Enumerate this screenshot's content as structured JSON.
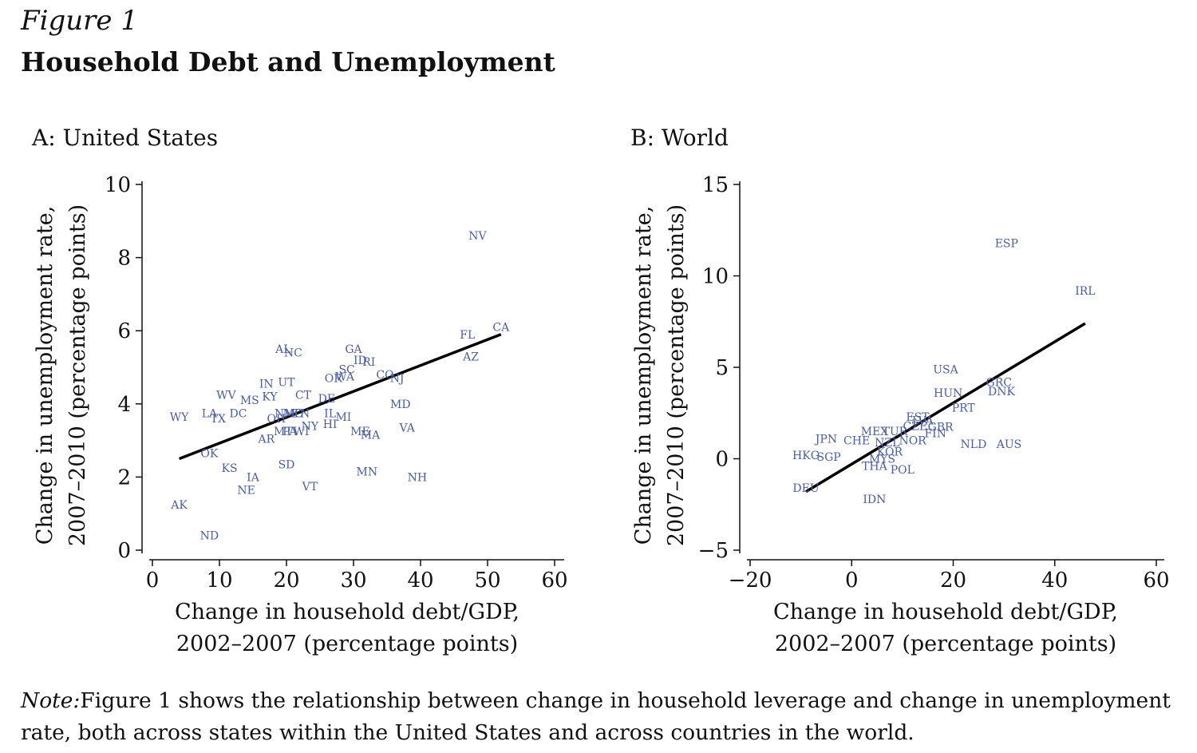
{
  "figure": {
    "label": "Figure 1",
    "title": "Household Debt and Unemployment",
    "note_label": "Note:",
    "note_text": "Figure 1 shows the relationship between change in household leverage and change in unemployment rate, both across states within the United States and across countries in the world."
  },
  "chart_data": [
    {
      "type": "scatter",
      "title": "A: United States",
      "xlabel": [
        "Change in household debt/GDP,",
        "2002–2007 (percentage points)"
      ],
      "ylabel": [
        "Change in unemployment rate,",
        "2007–2010 (percentage points)"
      ],
      "xlim": [
        0,
        60
      ],
      "ylim": [
        0,
        10
      ],
      "xticks": [
        0,
        10,
        20,
        30,
        40,
        50,
        60
      ],
      "yticks": [
        0,
        2,
        4,
        6,
        8,
        10
      ],
      "xtick_labels": [
        "0",
        "10",
        "20",
        "30",
        "40",
        "50",
        "60"
      ],
      "ytick_labels": [
        "0",
        "2",
        "4",
        "6",
        "8",
        "10"
      ],
      "point_color": "#4b5ea4",
      "fit_line": {
        "x": [
          4,
          52
        ],
        "y": [
          2.5,
          5.9
        ]
      },
      "points": [
        {
          "label": "NV",
          "x": 48.5,
          "y": 8.6
        },
        {
          "label": "CA",
          "x": 52,
          "y": 6.1
        },
        {
          "label": "FL",
          "x": 47,
          "y": 5.9
        },
        {
          "label": "AZ",
          "x": 47.5,
          "y": 5.3
        },
        {
          "label": "AL",
          "x": 19.5,
          "y": 5.5
        },
        {
          "label": "NC",
          "x": 21,
          "y": 5.4
        },
        {
          "label": "GA",
          "x": 30,
          "y": 5.5
        },
        {
          "label": "ID",
          "x": 31,
          "y": 5.2
        },
        {
          "label": "RI",
          "x": 32.3,
          "y": 5.15
        },
        {
          "label": "SC",
          "x": 29,
          "y": 4.95
        },
        {
          "label": "OR",
          "x": 27,
          "y": 4.7
        },
        {
          "label": "WA",
          "x": 28.7,
          "y": 4.75
        },
        {
          "label": "CO",
          "x": 34.7,
          "y": 4.8
        },
        {
          "label": "NJ",
          "x": 36.5,
          "y": 4.7
        },
        {
          "label": "IN",
          "x": 17,
          "y": 4.55
        },
        {
          "label": "UT",
          "x": 20,
          "y": 4.6
        },
        {
          "label": "WV",
          "x": 11,
          "y": 4.25
        },
        {
          "label": "MS",
          "x": 14.5,
          "y": 4.1
        },
        {
          "label": "KY",
          "x": 17.5,
          "y": 4.2
        },
        {
          "label": "CT",
          "x": 22.5,
          "y": 4.25
        },
        {
          "label": "DE",
          "x": 26,
          "y": 4.15
        },
        {
          "label": "MD",
          "x": 37,
          "y": 4.0
        },
        {
          "label": "WY",
          "x": 4,
          "y": 3.65
        },
        {
          "label": "LA",
          "x": 8.5,
          "y": 3.75
        },
        {
          "label": "TX",
          "x": 9.8,
          "y": 3.6
        },
        {
          "label": "DC",
          "x": 12.8,
          "y": 3.75
        },
        {
          "label": "OH",
          "x": 18.5,
          "y": 3.6
        },
        {
          "label": "NM",
          "x": 19.8,
          "y": 3.75
        },
        {
          "label": "MO",
          "x": 21,
          "y": 3.75
        },
        {
          "label": "TN",
          "x": 22.2,
          "y": 3.75
        },
        {
          "label": "IL",
          "x": 26.5,
          "y": 3.75
        },
        {
          "label": "MI",
          "x": 28.5,
          "y": 3.65
        },
        {
          "label": "NY",
          "x": 23.5,
          "y": 3.4
        },
        {
          "label": "HI",
          "x": 26.5,
          "y": 3.45
        },
        {
          "label": "MT",
          "x": 19.5,
          "y": 3.25
        },
        {
          "label": "PA",
          "x": 20.5,
          "y": 3.25
        },
        {
          "label": "WI",
          "x": 22.2,
          "y": 3.25
        },
        {
          "label": "AR",
          "x": 17,
          "y": 3.05
        },
        {
          "label": "ME",
          "x": 31,
          "y": 3.25
        },
        {
          "label": "MA",
          "x": 32.5,
          "y": 3.15
        },
        {
          "label": "VA",
          "x": 38,
          "y": 3.35
        },
        {
          "label": "OK",
          "x": 8.5,
          "y": 2.65
        },
        {
          "label": "KS",
          "x": 11.5,
          "y": 2.25
        },
        {
          "label": "SD",
          "x": 20,
          "y": 2.35
        },
        {
          "label": "IA",
          "x": 15,
          "y": 2.0
        },
        {
          "label": "MN",
          "x": 32,
          "y": 2.15
        },
        {
          "label": "NH",
          "x": 39.5,
          "y": 2.0
        },
        {
          "label": "NE",
          "x": 14,
          "y": 1.65
        },
        {
          "label": "VT",
          "x": 23.5,
          "y": 1.75
        },
        {
          "label": "AK",
          "x": 4,
          "y": 1.25
        },
        {
          "label": "ND",
          "x": 8.5,
          "y": 0.4
        }
      ]
    },
    {
      "type": "scatter",
      "title": "B: World",
      "xlabel": [
        "Change in household debt/GDP,",
        "2002–2007 (percentage points)"
      ],
      "ylabel": [
        "Change in unemployment rate,",
        "2007–2010 (percentage points)"
      ],
      "xlim": [
        -20,
        60
      ],
      "ylim": [
        -5,
        15
      ],
      "xticks": [
        -20,
        0,
        20,
        40,
        60
      ],
      "yticks": [
        -5,
        0,
        5,
        10,
        15
      ],
      "xtick_labels": [
        "−20",
        "0",
        "20",
        "40",
        "60"
      ],
      "ytick_labels": [
        "−5",
        "0",
        "5",
        "10",
        "15"
      ],
      "point_color": "#4b5ea4",
      "fit_line": {
        "x": [
          -9,
          46
        ],
        "y": [
          -1.8,
          7.4
        ]
      },
      "points": [
        {
          "label": "ESP",
          "x": 30.5,
          "y": 11.8
        },
        {
          "label": "IRL",
          "x": 46,
          "y": 9.2
        },
        {
          "label": "USA",
          "x": 18.5,
          "y": 4.9
        },
        {
          "label": "GRC",
          "x": 29,
          "y": 4.2
        },
        {
          "label": "DNK",
          "x": 29.5,
          "y": 3.7
        },
        {
          "label": "HUN",
          "x": 19,
          "y": 3.6
        },
        {
          "label": "PRT",
          "x": 22,
          "y": 2.8
        },
        {
          "label": "EST",
          "x": 13,
          "y": 2.3
        },
        {
          "label": "LVA",
          "x": 14,
          "y": 2.1
        },
        {
          "label": "CZE",
          "x": 12.5,
          "y": 1.8
        },
        {
          "label": "GBR",
          "x": 17.5,
          "y": 1.75
        },
        {
          "label": "MEX",
          "x": 4.5,
          "y": 1.5
        },
        {
          "label": "TUR",
          "x": 8.5,
          "y": 1.5
        },
        {
          "label": "FIN",
          "x": 16.5,
          "y": 1.4
        },
        {
          "label": "JPN",
          "x": -5,
          "y": 1.1
        },
        {
          "label": "CHE",
          "x": 1,
          "y": 1.0
        },
        {
          "label": "NZL",
          "x": 7,
          "y": 0.9
        },
        {
          "label": "NOR",
          "x": 12,
          "y": 1.0
        },
        {
          "label": "NLD",
          "x": 24,
          "y": 0.8
        },
        {
          "label": "AUS",
          "x": 31,
          "y": 0.8
        },
        {
          "label": "KOR",
          "x": 7.5,
          "y": 0.4
        },
        {
          "label": "HKG",
          "x": -9,
          "y": 0.2
        },
        {
          "label": "SGP",
          "x": -4.5,
          "y": 0.1
        },
        {
          "label": "MYS",
          "x": 6,
          "y": 0.0
        },
        {
          "label": "THA",
          "x": 4.5,
          "y": -0.4
        },
        {
          "label": "POL",
          "x": 10,
          "y": -0.6
        },
        {
          "label": "DEU",
          "x": -9,
          "y": -1.6
        },
        {
          "label": "IDN",
          "x": 4.5,
          "y": -2.2
        }
      ]
    }
  ]
}
